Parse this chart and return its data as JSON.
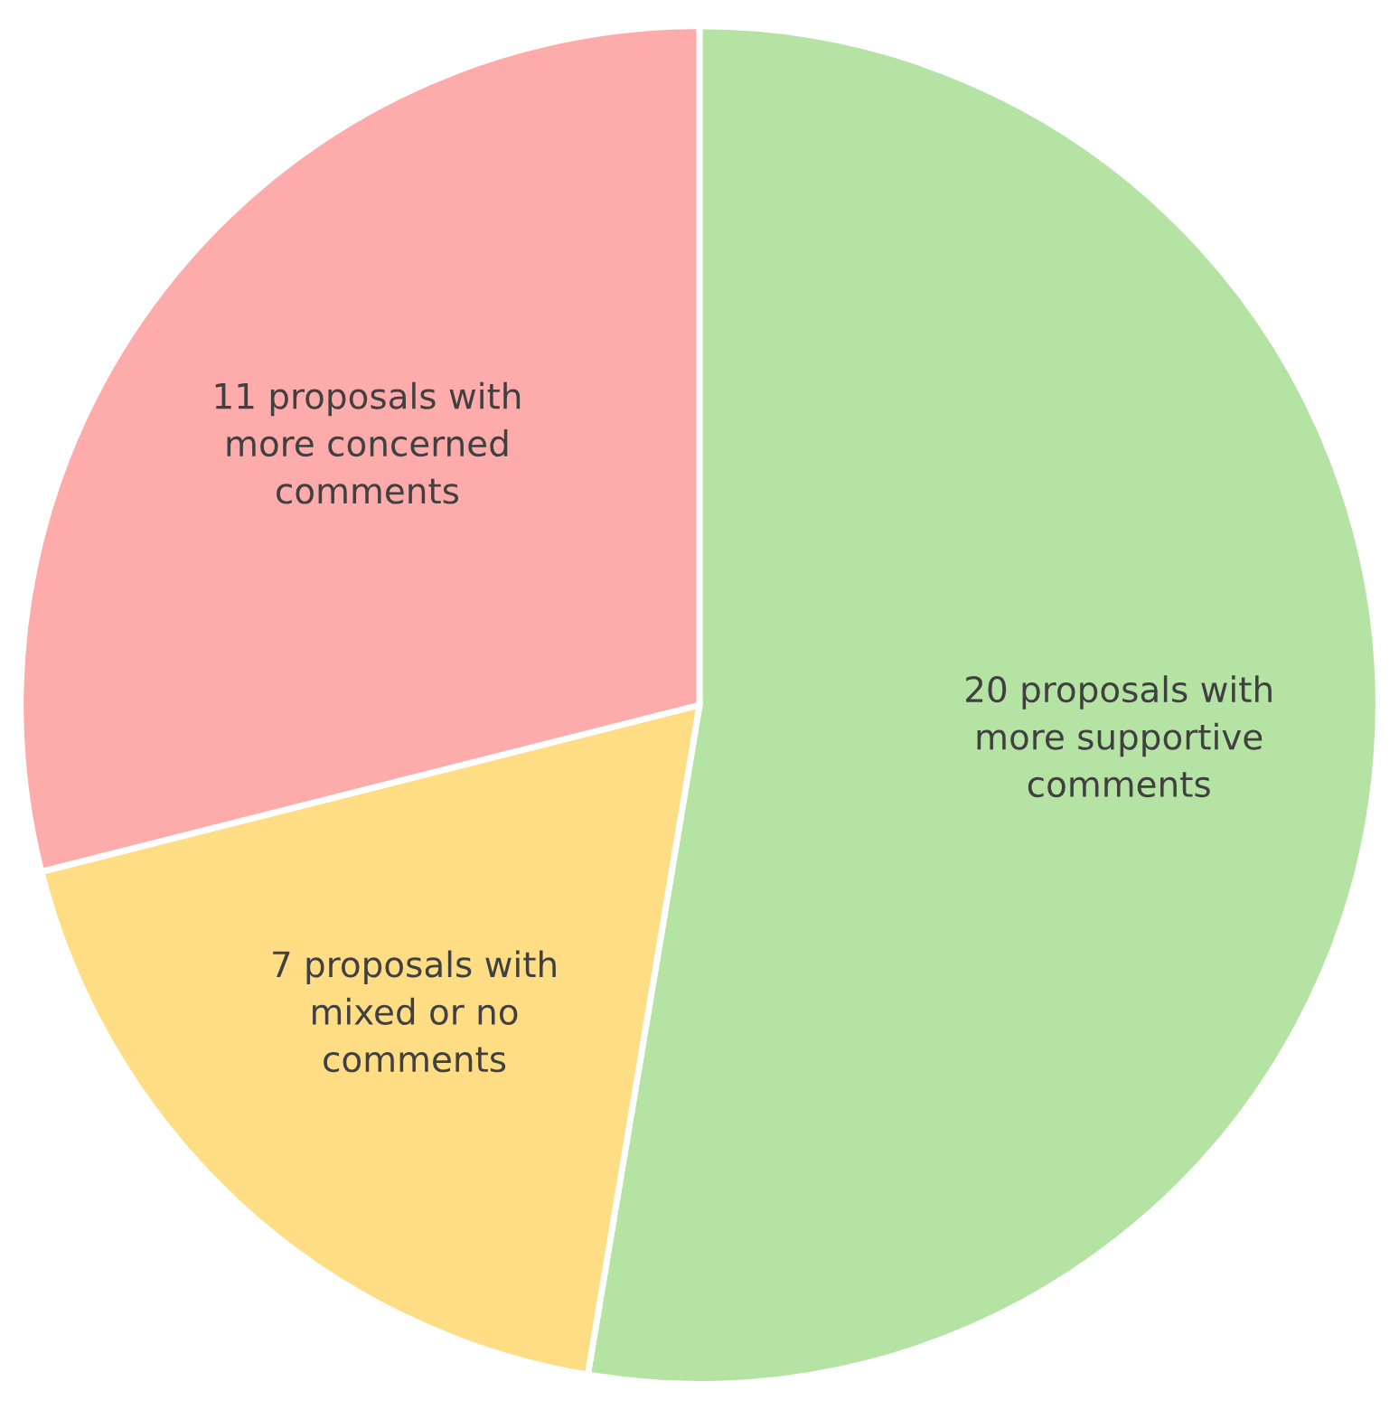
{
  "chart_data": {
    "type": "pie",
    "categories": [
      "20 proposals with more supportive comments",
      "7 proposals with mixed or no comments",
      "11 proposals with more concerned comments"
    ],
    "values": [
      20,
      7,
      11
    ],
    "colors": [
      "#b4e3a3",
      "#fedd85",
      "#fdabab"
    ]
  }
}
